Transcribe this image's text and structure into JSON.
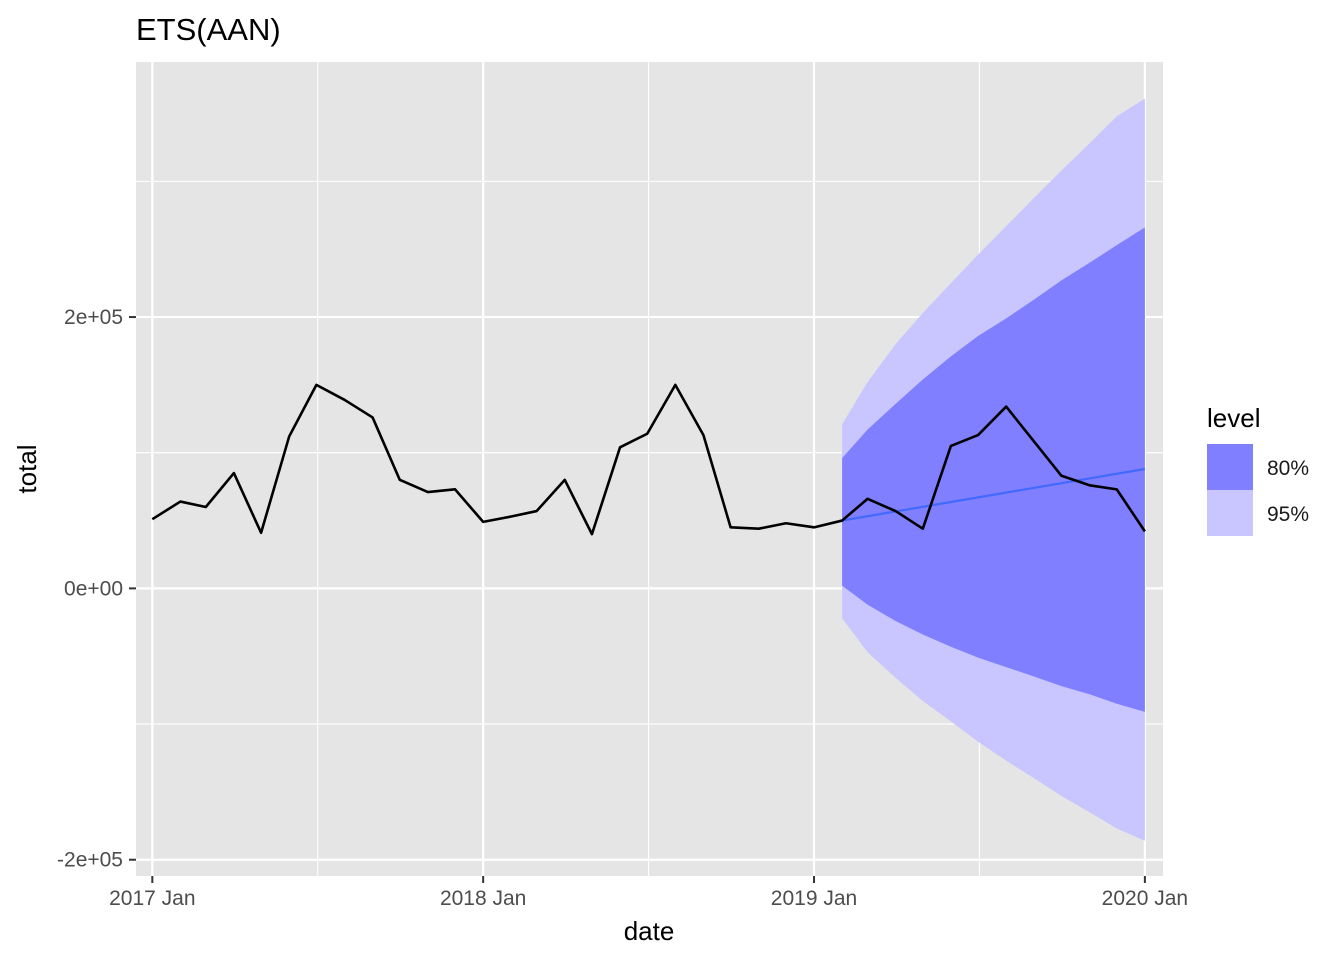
{
  "chart_data": {
    "type": "line",
    "title": "ETS(AAN)",
    "xlabel": "date",
    "ylabel": "total",
    "x_ticks": [
      "2017 Jan",
      "2018 Jan",
      "2019 Jan",
      "2020 Jan"
    ],
    "y_ticks": [
      "-2e+05",
      "0e+00",
      "2e+05"
    ],
    "y_tick_values": [
      -200000,
      0,
      200000
    ],
    "ylim": [
      -212000,
      388000
    ],
    "xlim": [
      "2016-12-14",
      "2020-01-21"
    ],
    "grid": true,
    "legend": {
      "title": "level",
      "position": "right",
      "entries": [
        {
          "label": "80%",
          "color": "#7f7fff"
        },
        {
          "label": "95%",
          "color": "#c8c5ff"
        }
      ]
    },
    "colors": {
      "panel_background": "#e5e5e5",
      "grid": "#ffffff",
      "actual_line": "#000000",
      "forecast_line": "#4169ff",
      "band_80": "#7f7fff",
      "band_95": "#c8c5ff"
    },
    "series": [
      {
        "name": "actual",
        "x": [
          "2017-01",
          "2017-02",
          "2017-03",
          "2017-04",
          "2017-05",
          "2017-06",
          "2017-07",
          "2017-08",
          "2017-09",
          "2017-10",
          "2017-11",
          "2017-12",
          "2018-01",
          "2018-02",
          "2018-03",
          "2018-04",
          "2018-05",
          "2018-06",
          "2018-07",
          "2018-08",
          "2018-09",
          "2018-10",
          "2018-11",
          "2018-12",
          "2019-01",
          "2019-02",
          "2019-03",
          "2019-04",
          "2019-05",
          "2019-06",
          "2019-07",
          "2019-08",
          "2019-09",
          "2019-10",
          "2019-11",
          "2019-12",
          "2020-01"
        ],
        "values": [
          51000,
          64000,
          60000,
          85000,
          41000,
          112000,
          150000,
          139000,
          126000,
          80000,
          71000,
          73000,
          49000,
          53000,
          57000,
          80000,
          40000,
          104000,
          114000,
          150000,
          113000,
          45000,
          44000,
          48000,
          45000,
          50000,
          66000,
          57000,
          44000,
          105000,
          113000,
          134000,
          108000,
          83000,
          76000,
          73000,
          42000
        ]
      },
      {
        "name": "forecast",
        "x": [
          "2019-02",
          "2020-01"
        ],
        "values": [
          50000,
          88000
        ]
      }
    ],
    "intervals": [
      {
        "level": "95%",
        "x": [
          "2019-02",
          "2019-03",
          "2019-04",
          "2019-05",
          "2019-06",
          "2019-07",
          "2019-08",
          "2019-09",
          "2019-10",
          "2019-11",
          "2019-12",
          "2020-01"
        ],
        "lower": [
          -22000,
          -47000,
          -66000,
          -83000,
          -98000,
          -113000,
          -127000,
          -140000,
          -153000,
          -165000,
          -177000,
          -186000
        ],
        "upper": [
          121000,
          152000,
          180000,
          203000,
          225000,
          246000,
          267000,
          288000,
          308000,
          328000,
          348000,
          361000
        ]
      },
      {
        "level": "80%",
        "x": [
          "2019-02",
          "2019-03",
          "2019-04",
          "2019-05",
          "2019-06",
          "2019-07",
          "2019-08",
          "2019-09",
          "2019-10",
          "2019-11",
          "2019-12",
          "2020-01"
        ],
        "lower": [
          2000,
          -12000,
          -24000,
          -34000,
          -43000,
          -51000,
          -58000,
          -65000,
          -72000,
          -78000,
          -85000,
          -91000
        ],
        "upper": [
          96000,
          117000,
          136000,
          154000,
          171000,
          186000,
          199000,
          213000,
          227000,
          240000,
          253000,
          266000
        ]
      }
    ]
  }
}
